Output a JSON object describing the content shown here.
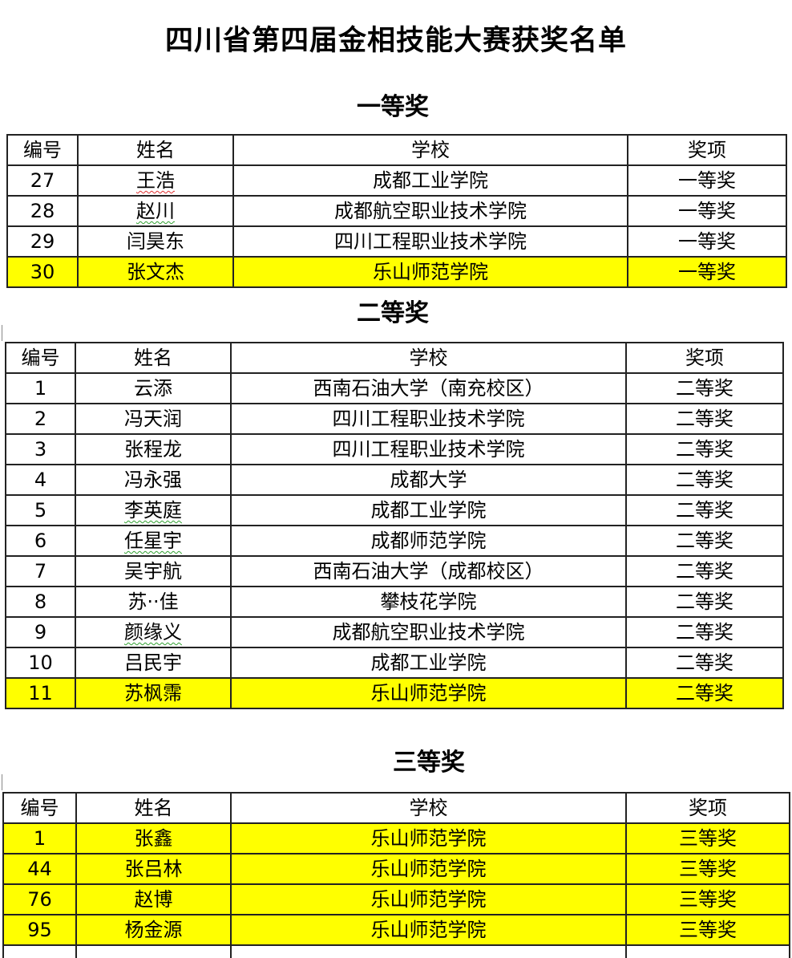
{
  "title": "四川省第四届金相技能大赛获奖名单",
  "highlight_color": "#ffff00",
  "headers": [
    "编号",
    "姓名",
    "学校",
    "奖项"
  ],
  "sections": [
    {
      "heading": "一等奖",
      "rows": [
        {
          "no": "27",
          "name": "王浩",
          "school": "成都工业学院",
          "award": "一等奖",
          "highlight": false,
          "spell": "red"
        },
        {
          "no": "28",
          "name": "赵川",
          "school": "成都航空职业技术学院",
          "award": "一等奖",
          "highlight": false,
          "spell": "green"
        },
        {
          "no": "29",
          "name": "闫昊东",
          "school": "四川工程职业技术学院",
          "award": "一等奖",
          "highlight": false
        },
        {
          "no": "30",
          "name": "张文杰",
          "school": "乐山师范学院",
          "award": "一等奖",
          "highlight": true
        }
      ]
    },
    {
      "heading": "二等奖",
      "rows": [
        {
          "no": "1",
          "name": "云添",
          "school": "西南石油大学（南充校区）",
          "award": "二等奖",
          "highlight": false
        },
        {
          "no": "2",
          "name": "冯天润",
          "school": "四川工程职业技术学院",
          "award": "二等奖",
          "highlight": false
        },
        {
          "no": "3",
          "name": "张程龙",
          "school": "四川工程职业技术学院",
          "award": "二等奖",
          "highlight": false
        },
        {
          "no": "4",
          "name": "冯永强",
          "school": "成都大学",
          "award": "二等奖",
          "highlight": false
        },
        {
          "no": "5",
          "name": "李英庭",
          "school": "成都工业学院",
          "award": "二等奖",
          "highlight": false,
          "spell": "green"
        },
        {
          "no": "6",
          "name": "任星宇",
          "school": "成都师范学院",
          "award": "二等奖",
          "highlight": false,
          "spell": "green"
        },
        {
          "no": "7",
          "name": "吴宇航",
          "school": "西南石油大学（成都校区）",
          "award": "二等奖",
          "highlight": false
        },
        {
          "no": "8",
          "name": "苏··佳",
          "school": "攀枝花学院",
          "award": "二等奖",
          "highlight": false
        },
        {
          "no": "9",
          "name": "颜缘义",
          "school": "成都航空职业技术学院",
          "award": "二等奖",
          "highlight": false,
          "spell": "green"
        },
        {
          "no": "10",
          "name": "吕民宇",
          "school": "成都工业学院",
          "award": "二等奖",
          "highlight": false
        },
        {
          "no": "11",
          "name": "苏枫霈",
          "school": "乐山师范学院",
          "award": "二等奖",
          "highlight": true
        }
      ]
    },
    {
      "heading": "三等奖",
      "rows": [
        {
          "no": "1",
          "name": "张鑫",
          "school": "乐山师范学院",
          "award": "三等奖",
          "highlight": true
        },
        {
          "no": "44",
          "name": "张吕林",
          "school": "乐山师范学院",
          "award": "三等奖",
          "highlight": true
        },
        {
          "no": "76",
          "name": "赵博",
          "school": "乐山师范学院",
          "award": "三等奖",
          "highlight": true
        },
        {
          "no": "95",
          "name": "杨金源",
          "school": "乐山师范学院",
          "award": "三等奖",
          "highlight": true
        },
        {
          "no": "",
          "name": "",
          "school": "",
          "award": "",
          "highlight": false
        }
      ]
    }
  ]
}
